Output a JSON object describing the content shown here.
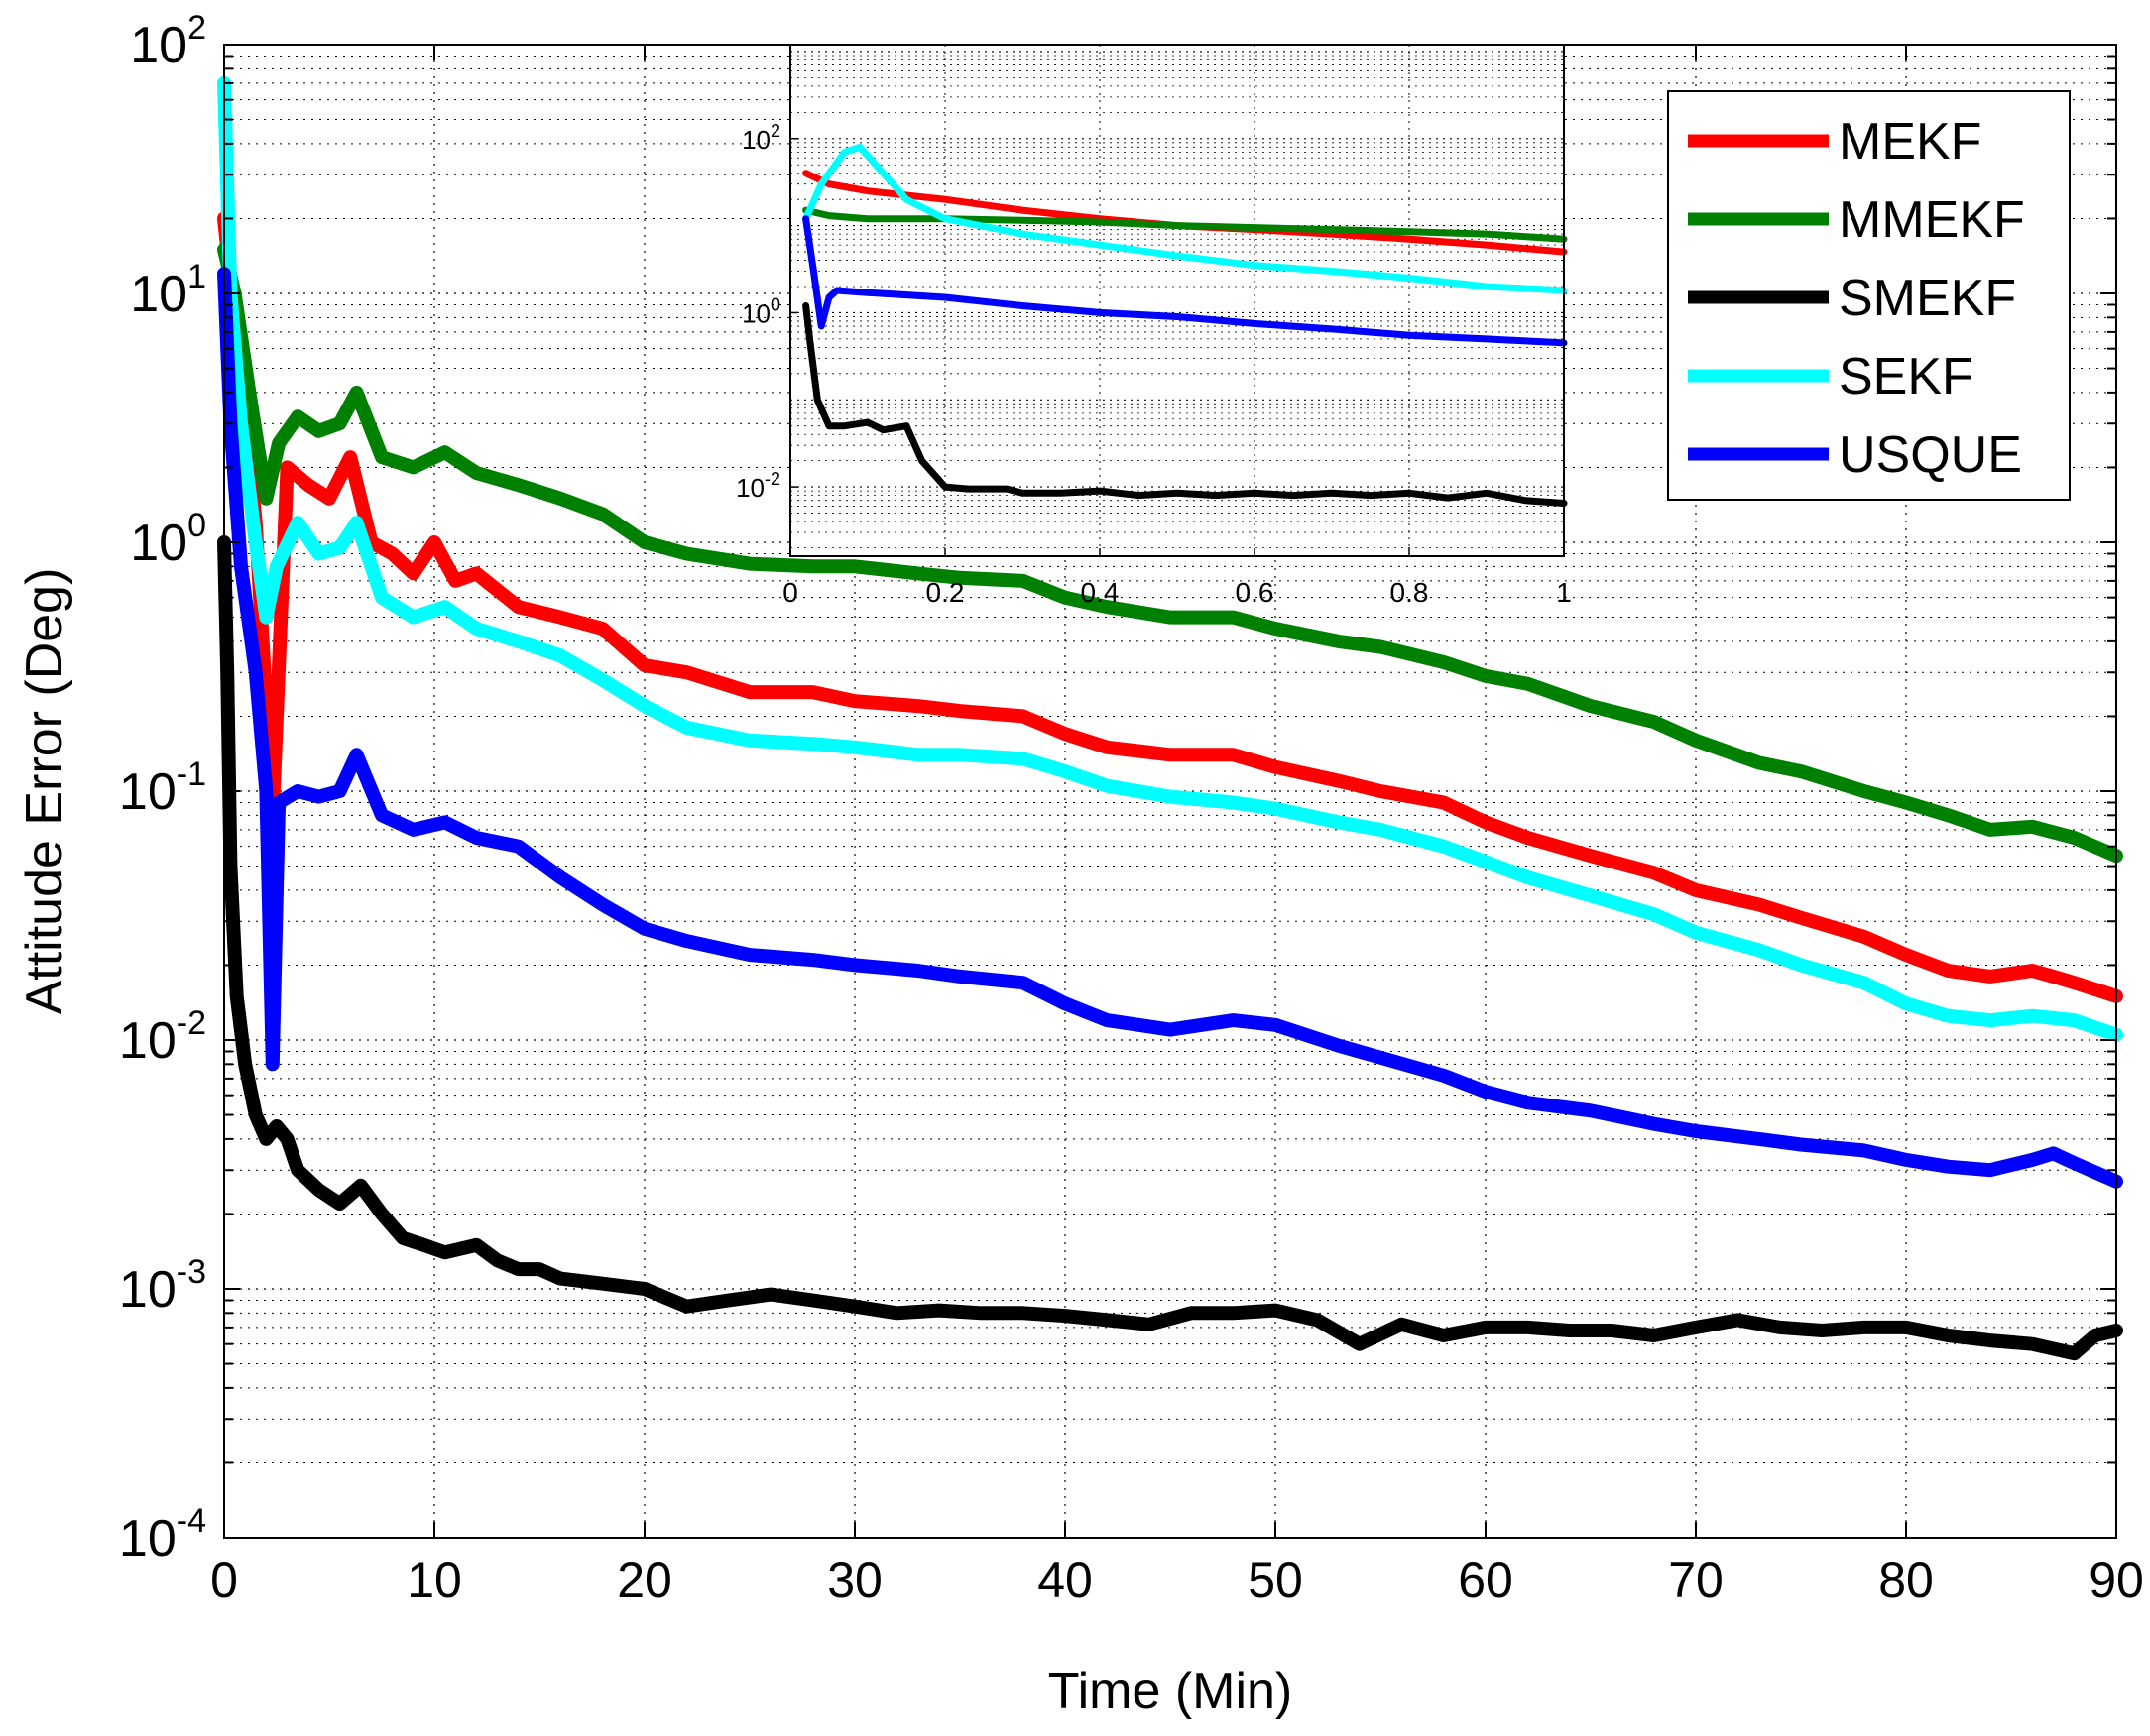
{
  "chart_data": [
    {
      "type": "line",
      "role": "main",
      "title": "",
      "xlabel": "Time (Min)",
      "ylabel": "Attitude Error (Deg)",
      "xscale": "linear",
      "yscale": "log",
      "xlim": [
        0,
        90
      ],
      "ylim": [
        0.0001,
        100
      ],
      "grid": true,
      "legend_position": "top-right",
      "xticks": [
        0,
        10,
        20,
        30,
        40,
        50,
        60,
        70,
        80,
        90
      ],
      "xtick_labels": [
        "0",
        "10",
        "20",
        "30",
        "40",
        "50",
        "60",
        "70",
        "80",
        "90"
      ],
      "yticks": [
        -4,
        -3,
        -2,
        -1,
        0,
        1,
        2
      ],
      "ytick_labels": [
        {
          "base": "10",
          "exp": "-4"
        },
        {
          "base": "10",
          "exp": "-3"
        },
        {
          "base": "10",
          "exp": "-2"
        },
        {
          "base": "10",
          "exp": "-1"
        },
        {
          "base": "10",
          "exp": "0"
        },
        {
          "base": "10",
          "exp": "1"
        },
        {
          "base": "10",
          "exp": "2"
        }
      ],
      "series": [
        {
          "name": "MEKF",
          "color": "#ff0000",
          "x": [
            0,
            0.5,
            1.5,
            2.3,
            3,
            4,
            5,
            6,
            7,
            8,
            9,
            10,
            11,
            12,
            14,
            16,
            18,
            20,
            22,
            25,
            28,
            30,
            33,
            35,
            38,
            40,
            42,
            45,
            48,
            50,
            53,
            55,
            58,
            60,
            62,
            65,
            68,
            70,
            73,
            75,
            78,
            80,
            82,
            84,
            86,
            87,
            88,
            90
          ],
          "y": [
            20,
            8,
            1.2,
            0.08,
            2.0,
            1.7,
            1.5,
            2.2,
            1.0,
            0.9,
            0.75,
            1.0,
            0.7,
            0.75,
            0.55,
            0.5,
            0.45,
            0.32,
            0.3,
            0.25,
            0.25,
            0.23,
            0.22,
            0.21,
            0.2,
            0.17,
            0.15,
            0.14,
            0.14,
            0.125,
            0.11,
            0.1,
            0.09,
            0.075,
            0.065,
            0.055,
            0.047,
            0.04,
            0.035,
            0.031,
            0.026,
            0.022,
            0.019,
            0.018,
            0.019,
            0.018,
            0.017,
            0.015
          ]
        },
        {
          "name": "MMEKF",
          "color": "#008000",
          "x": [
            0,
            0.5,
            1.2,
            2.0,
            2.6,
            3.5,
            4.5,
            5.5,
            6.3,
            7.5,
            9,
            10.5,
            12,
            14,
            16,
            18,
            20,
            22,
            25,
            28,
            30,
            33,
            35,
            38,
            40,
            42,
            45,
            48,
            50,
            53,
            55,
            58,
            60,
            62,
            65,
            68,
            70,
            73,
            75,
            78,
            80,
            82,
            84,
            86,
            88,
            90
          ],
          "y": [
            15,
            10,
            4.0,
            1.5,
            2.5,
            3.2,
            2.8,
            3.0,
            4.0,
            2.2,
            2.0,
            2.3,
            1.9,
            1.7,
            1.5,
            1.3,
            1.0,
            0.9,
            0.82,
            0.8,
            0.8,
            0.75,
            0.72,
            0.7,
            0.6,
            0.55,
            0.5,
            0.5,
            0.45,
            0.4,
            0.38,
            0.33,
            0.29,
            0.27,
            0.22,
            0.19,
            0.16,
            0.13,
            0.12,
            0.1,
            0.09,
            0.08,
            0.07,
            0.072,
            0.065,
            0.055
          ]
        },
        {
          "name": "SEKF",
          "color": "#00ffff",
          "x": [
            0,
            0.3,
            0.8,
            1.5,
            2.0,
            2.5,
            3.5,
            4.5,
            5.5,
            6.3,
            7.5,
            9,
            10.5,
            12,
            14,
            16,
            18,
            20,
            22,
            25,
            28,
            30,
            33,
            35,
            38,
            40,
            42,
            45,
            48,
            50,
            53,
            55,
            58,
            60,
            62,
            65,
            68,
            70,
            73,
            75,
            78,
            80,
            82,
            84,
            86,
            88,
            90
          ],
          "y": [
            70,
            10,
            3.0,
            1.0,
            0.5,
            0.8,
            1.2,
            0.9,
            0.95,
            1.2,
            0.6,
            0.5,
            0.55,
            0.45,
            0.4,
            0.35,
            0.28,
            0.22,
            0.18,
            0.16,
            0.155,
            0.15,
            0.14,
            0.14,
            0.135,
            0.12,
            0.105,
            0.095,
            0.09,
            0.085,
            0.075,
            0.07,
            0.06,
            0.052,
            0.045,
            0.038,
            0.032,
            0.027,
            0.023,
            0.02,
            0.017,
            0.014,
            0.0125,
            0.012,
            0.0125,
            0.012,
            0.0105
          ]
        },
        {
          "name": "USQUE",
          "color": "#0000ff",
          "x": [
            0,
            0.3,
            0.8,
            1.5,
            2.0,
            2.3,
            2.6,
            3.5,
            4.5,
            5.5,
            6.3,
            7.5,
            9,
            10.5,
            12,
            14,
            16,
            18,
            20,
            22,
            25,
            28,
            30,
            33,
            35,
            38,
            40,
            42,
            45,
            48,
            50,
            53,
            55,
            58,
            60,
            62,
            65,
            68,
            70,
            73,
            75,
            78,
            80,
            82,
            84,
            86,
            87,
            88,
            90
          ],
          "y": [
            12,
            3.0,
            0.8,
            0.3,
            0.1,
            0.008,
            0.09,
            0.1,
            0.095,
            0.1,
            0.14,
            0.08,
            0.07,
            0.075,
            0.065,
            0.06,
            0.045,
            0.035,
            0.028,
            0.025,
            0.022,
            0.021,
            0.02,
            0.019,
            0.018,
            0.017,
            0.014,
            0.012,
            0.011,
            0.012,
            0.0115,
            0.0095,
            0.0085,
            0.0072,
            0.0062,
            0.0056,
            0.0052,
            0.0046,
            0.0043,
            0.004,
            0.0038,
            0.0036,
            0.0033,
            0.0031,
            0.003,
            0.0033,
            0.0035,
            0.0032,
            0.0027
          ]
        },
        {
          "name": "SMEKF",
          "color": "#000000",
          "x": [
            0,
            0.15,
            0.3,
            0.6,
            1.0,
            1.5,
            2.0,
            2.5,
            3.0,
            3.5,
            4.5,
            5.5,
            6.5,
            7.5,
            8.5,
            9.5,
            10.5,
            12,
            13,
            14,
            15,
            16,
            18,
            20,
            22,
            24,
            26,
            28,
            30,
            32,
            34,
            36,
            38,
            40,
            42,
            44,
            46,
            48,
            50,
            52,
            54,
            56,
            58,
            60,
            62,
            64,
            66,
            68,
            70,
            72,
            74,
            76,
            78,
            80,
            82,
            84,
            86,
            88,
            89,
            90
          ],
          "y": [
            1.0,
            0.3,
            0.05,
            0.015,
            0.008,
            0.005,
            0.004,
            0.0045,
            0.004,
            0.003,
            0.0025,
            0.0022,
            0.0026,
            0.002,
            0.0016,
            0.0015,
            0.0014,
            0.0015,
            0.0013,
            0.0012,
            0.0012,
            0.0011,
            0.00105,
            0.001,
            0.00085,
            0.0009,
            0.00095,
            0.0009,
            0.00085,
            0.0008,
            0.00082,
            0.0008,
            0.0008,
            0.00078,
            0.00075,
            0.00072,
            0.0008,
            0.0008,
            0.00082,
            0.00075,
            0.0006,
            0.00072,
            0.00065,
            0.0007,
            0.0007,
            0.00068,
            0.00068,
            0.00065,
            0.0007,
            0.00075,
            0.0007,
            0.00068,
            0.0007,
            0.0007,
            0.00065,
            0.00062,
            0.0006,
            0.00055,
            0.00065,
            0.00068
          ]
        }
      ]
    },
    {
      "type": "line",
      "role": "inset",
      "xscale": "linear",
      "yscale": "log",
      "xlim": [
        0,
        1
      ],
      "ylim": [
        0.0016,
        1200
      ],
      "grid": true,
      "xticks": [
        0,
        0.2,
        0.4,
        0.6,
        0.8,
        1
      ],
      "xtick_labels": [
        "0",
        "0.2",
        "0.4",
        "0.6",
        "0.8",
        "1"
      ],
      "yticks": [
        -2,
        0,
        2
      ],
      "ytick_labels": [
        {
          "base": "10",
          "exp": "-2"
        },
        {
          "base": "10",
          "exp": "0"
        },
        {
          "base": "10",
          "exp": "2"
        }
      ],
      "series": [
        {
          "name": "MEKF",
          "color": "#ff0000",
          "x": [
            0.02,
            0.05,
            0.1,
            0.2,
            0.3,
            0.4,
            0.5,
            0.6,
            0.7,
            0.8,
            0.9,
            1.0
          ],
          "y": [
            40,
            30,
            25,
            20,
            15,
            12,
            10,
            9,
            8,
            7,
            6,
            5
          ]
        },
        {
          "name": "MMEKF",
          "color": "#008000",
          "x": [
            0.02,
            0.05,
            0.1,
            0.2,
            0.3,
            0.4,
            0.5,
            0.6,
            0.7,
            0.8,
            0.9,
            1.0
          ],
          "y": [
            15,
            13,
            12,
            12,
            11.5,
            11,
            10,
            9.5,
            9,
            8.5,
            8,
            7
          ]
        },
        {
          "name": "SEKF",
          "color": "#00ffff",
          "x": [
            0.02,
            0.04,
            0.07,
            0.09,
            0.12,
            0.15,
            0.2,
            0.3,
            0.4,
            0.5,
            0.6,
            0.7,
            0.8,
            0.9,
            1.0
          ],
          "y": [
            12,
            30,
            70,
            80,
            40,
            20,
            12,
            8,
            6,
            4.5,
            3.5,
            3.0,
            2.5,
            2.0,
            1.8
          ]
        },
        {
          "name": "USQUE",
          "color": "#0000ff",
          "x": [
            0.02,
            0.03,
            0.04,
            0.05,
            0.06,
            0.1,
            0.2,
            0.3,
            0.4,
            0.5,
            0.6,
            0.7,
            0.8,
            0.9,
            1.0
          ],
          "y": [
            12,
            3,
            0.7,
            1.5,
            1.8,
            1.7,
            1.5,
            1.2,
            1.0,
            0.9,
            0.75,
            0.65,
            0.55,
            0.5,
            0.45
          ]
        },
        {
          "name": "SMEKF",
          "color": "#000000",
          "x": [
            0.02,
            0.025,
            0.035,
            0.05,
            0.07,
            0.1,
            0.12,
            0.15,
            0.17,
            0.2,
            0.23,
            0.28,
            0.3,
            0.35,
            0.4,
            0.45,
            0.5,
            0.55,
            0.6,
            0.65,
            0.7,
            0.75,
            0.8,
            0.85,
            0.9,
            0.95,
            1.0
          ],
          "y": [
            1.2,
            0.5,
            0.1,
            0.05,
            0.05,
            0.055,
            0.045,
            0.05,
            0.02,
            0.01,
            0.0095,
            0.0095,
            0.0085,
            0.0085,
            0.009,
            0.008,
            0.0085,
            0.008,
            0.0085,
            0.008,
            0.0085,
            0.008,
            0.0085,
            0.0075,
            0.0085,
            0.007,
            0.0065
          ]
        }
      ]
    }
  ]
}
